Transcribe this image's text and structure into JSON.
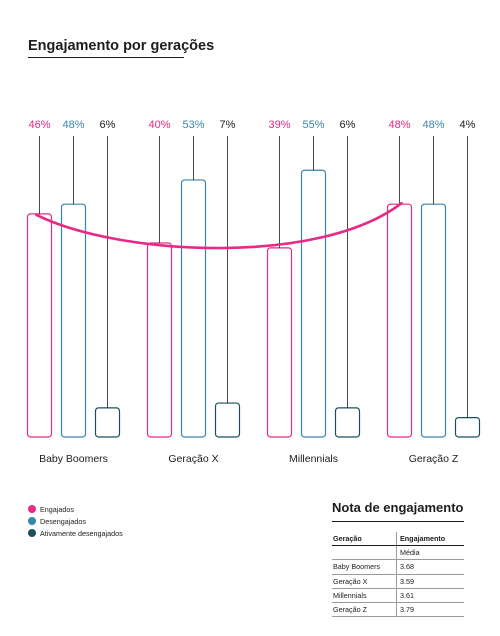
{
  "chart_data": {
    "type": "bar",
    "title": "Engajamento por gerações",
    "categories": [
      "Baby Boomers",
      "Geração X",
      "Millennials",
      "Geração Z"
    ],
    "ylim": [
      0,
      60
    ],
    "series": [
      {
        "name": "Engajados",
        "values": [
          46,
          40,
          39,
          48
        ],
        "labels": [
          "46%",
          "40%",
          "39%",
          "48%"
        ],
        "color": "#e62a85"
      },
      {
        "name": "Desengajados",
        "values": [
          48,
          53,
          55,
          48
        ],
        "labels": [
          "48%",
          "53%",
          "55%",
          "48%"
        ],
        "color": "#3a86a8"
      },
      {
        "name": "Ativamente desengajados",
        "values": [
          6,
          7,
          6,
          4
        ],
        "labels": [
          "6%",
          "7%",
          "6%",
          "4%"
        ],
        "color": "#1d4d5e"
      }
    ],
    "legend": "bottom-left",
    "grid": false
  },
  "note": {
    "title": "Nota de engajamento",
    "headers": [
      "Geração",
      "Engajamento"
    ],
    "subheader": "Média",
    "rows": [
      [
        "Baby Boomers",
        "3.68"
      ],
      [
        "Geração X",
        "3.59"
      ],
      [
        "Millennials",
        "3.61"
      ],
      [
        "Geração Z",
        "3.79"
      ]
    ]
  }
}
